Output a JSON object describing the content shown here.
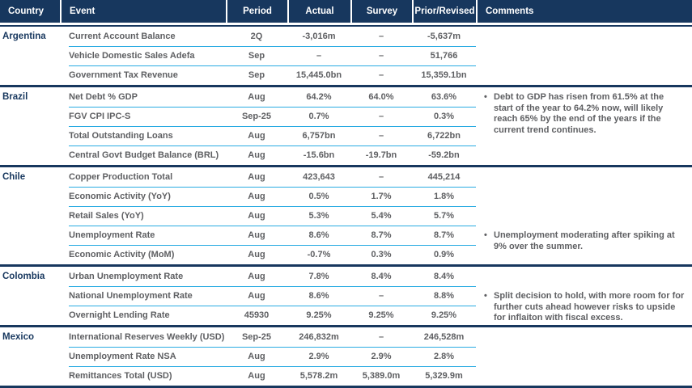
{
  "header": {
    "columns": [
      "Country",
      "Event",
      "Period",
      "Actual",
      "Survey",
      "Prior/Revised",
      "Comments"
    ]
  },
  "colors": {
    "header_bg": "#17375E",
    "section_divider": "#17375E",
    "row_rule": "#29ABE2",
    "country_text": "#17375E",
    "body_text": "#5E5F62",
    "header_text": "#FFFFFF"
  },
  "bullet": "•",
  "empty_value": "–",
  "table": {
    "sections": [
      {
        "country": "Argentina",
        "rows": [
          {
            "event": "Current Account Balance",
            "period": "2Q",
            "actual": "-3,016m",
            "survey": "–",
            "prior": "-5,637m"
          },
          {
            "event": "Vehicle Domestic Sales Adefa",
            "period": "Sep",
            "actual": "–",
            "survey": "–",
            "prior": "51,766"
          },
          {
            "event": "Government Tax Revenue",
            "period": "Sep",
            "actual": "15,445.0bn",
            "survey": "–",
            "prior": "15,359.1bn"
          }
        ],
        "comment": null
      },
      {
        "country": "Brazil",
        "rows": [
          {
            "event": "Net Debt % GDP",
            "period": "Aug",
            "actual": "64.2%",
            "survey": "64.0%",
            "prior": "63.6%"
          },
          {
            "event": "FGV CPI IPC-S",
            "period": "Sep-25",
            "actual": "0.7%",
            "survey": "–",
            "prior": "0.3%"
          },
          {
            "event": "Total Outstanding Loans",
            "period": "Aug",
            "actual": "6,757bn",
            "survey": "–",
            "prior": "6,722bn"
          },
          {
            "event": "Central Govt Budget Balance (BRL)",
            "period": "Aug",
            "actual": "-15.6bn",
            "survey": "-19.7bn",
            "prior": "-59.2bn"
          }
        ],
        "comment": {
          "text": "Debt to GDP has risen from 61.5% at the start of the year to 64.2% now, will likely reach 65% by the end of the years if the current trend continues.",
          "align_row": 0
        }
      },
      {
        "country": "Chile",
        "rows": [
          {
            "event": "Copper Production Total",
            "period": "Aug",
            "actual": "423,643",
            "survey": "–",
            "prior": "445,214"
          },
          {
            "event": "Economic Activity (YoY)",
            "period": "Aug",
            "actual": "0.5%",
            "survey": "1.7%",
            "prior": "1.8%"
          },
          {
            "event": "Retail Sales (YoY)",
            "period": "Aug",
            "actual": "5.3%",
            "survey": "5.4%",
            "prior": "5.7%"
          },
          {
            "event": "Unemployment Rate",
            "period": "Aug",
            "actual": "8.6%",
            "survey": "8.7%",
            "prior": "8.7%"
          },
          {
            "event": "Economic Activity (MoM)",
            "period": "Aug",
            "actual": "-0.7%",
            "survey": "0.3%",
            "prior": "0.9%"
          }
        ],
        "comment": {
          "text": "Unemployment moderating after spiking at 9% over the summer.",
          "align_row": 3
        }
      },
      {
        "country": "Colombia",
        "rows": [
          {
            "event": "Urban Unemployment Rate",
            "period": "Aug",
            "actual": "7.8%",
            "survey": "8.4%",
            "prior": "8.4%"
          },
          {
            "event": "National Unemployment Rate",
            "period": "Aug",
            "actual": "8.6%",
            "survey": "–",
            "prior": "8.8%"
          },
          {
            "event": "Overnight Lending Rate",
            "period": "45930",
            "actual": "9.25%",
            "survey": "9.25%",
            "prior": "9.25%"
          }
        ],
        "comment": {
          "text": "Split decision to hold, with more room for for further cuts ahead however risks to upside for inflaiton with fiscal excess.",
          "align_row": 1
        }
      },
      {
        "country": "Mexico",
        "rows": [
          {
            "event": "International Reserves Weekly (USD)",
            "period": "Sep-25",
            "actual": "246,832m",
            "survey": "–",
            "prior": "246,528m"
          },
          {
            "event": "Unemployment Rate NSA",
            "period": "Aug",
            "actual": "2.9%",
            "survey": "2.9%",
            "prior": "2.8%"
          },
          {
            "event": "Remittances Total (USD)",
            "period": "Aug",
            "actual": "5,578.2m",
            "survey": "5,389.0m",
            "prior": "5,329.9m"
          }
        ],
        "comment": null
      }
    ]
  }
}
